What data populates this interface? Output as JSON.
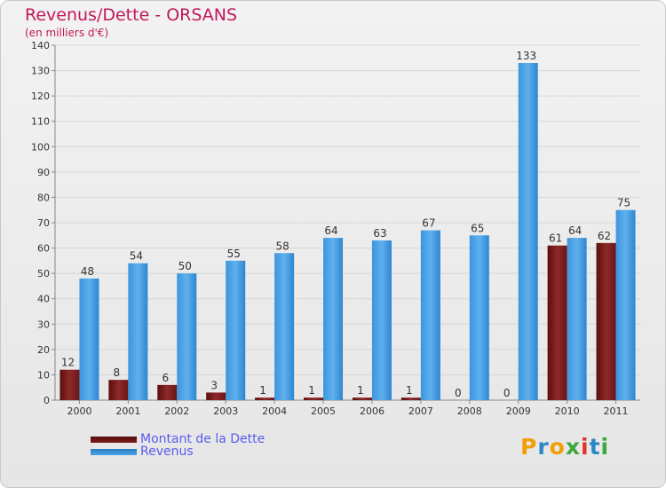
{
  "title": "Revenus/Dette - ORSANS",
  "subtitle": "(en milliers d'€)",
  "colors": {
    "debt": "#7b1c1c",
    "revenue": "#4aa3e8",
    "title": "#c2185b",
    "legend_text": "#5a5af0"
  },
  "legend": [
    {
      "label": "Montant de la Dette",
      "series": "debt"
    },
    {
      "label": "Revenus",
      "series": "revenue"
    }
  ],
  "logo": {
    "letters": [
      "P",
      "r",
      "o",
      "x",
      "i",
      "t",
      "i"
    ],
    "colors": [
      "#f29f05",
      "#2a88c9",
      "#f29f05",
      "#3aa83a",
      "#e5332a",
      "#2a88c9",
      "#3aa83a"
    ]
  },
  "chart_data": {
    "type": "bar",
    "categories": [
      "2000",
      "2001",
      "2002",
      "2003",
      "2004",
      "2005",
      "2006",
      "2007",
      "2008",
      "2009",
      "2010",
      "2011"
    ],
    "series": [
      {
        "name": "Montant de la Dette",
        "values": [
          12,
          8,
          6,
          3,
          1,
          1,
          1,
          1,
          0,
          0,
          61,
          62
        ]
      },
      {
        "name": "Revenus",
        "values": [
          48,
          54,
          50,
          55,
          58,
          64,
          63,
          67,
          65,
          133,
          64,
          75
        ]
      }
    ],
    "ylim": [
      0,
      140
    ],
    "yticks": [
      0,
      10,
      20,
      30,
      40,
      50,
      60,
      70,
      80,
      90,
      100,
      110,
      120,
      130,
      140
    ],
    "grid": true,
    "legend_position": "bottom-left"
  }
}
